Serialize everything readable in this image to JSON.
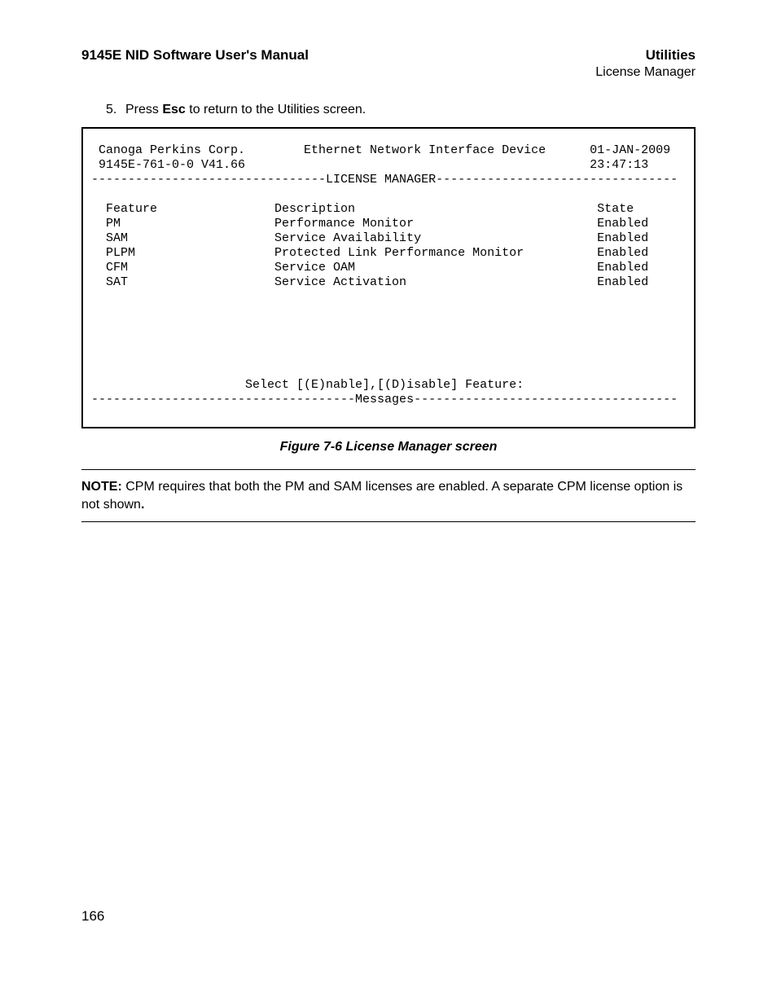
{
  "header": {
    "left": "9145E NID Software User's Manual",
    "right_title": "Utilities",
    "right_sub": "License Manager"
  },
  "instruction": {
    "number": "5.",
    "prefix": "Press ",
    "key": "Esc",
    "suffix": " to return to the Utilities screen."
  },
  "terminal": {
    "company": "Canoga Perkins Corp.",
    "device": "Ethernet Network Interface Device",
    "date": "01-JAN-2009",
    "model": "9145E-761-0-0 V41.66",
    "time": "23:47:13",
    "section_title": "LICENSE MANAGER",
    "col_feature": "Feature",
    "col_description": "Description",
    "col_state": "State",
    "rows": [
      {
        "feature": "PM",
        "description": "Performance Monitor",
        "state": "Enabled"
      },
      {
        "feature": "SAM",
        "description": "Service Availability",
        "state": "Enabled"
      },
      {
        "feature": "PLPM",
        "description": "Protected Link Performance Monitor",
        "state": "Enabled"
      },
      {
        "feature": "CFM",
        "description": "Service OAM",
        "state": "Enabled"
      },
      {
        "feature": "SAT",
        "description": "Service Activation",
        "state": "Enabled"
      }
    ],
    "prompt": "Select [(E)nable],[(D)isable] Feature:",
    "messages_label": "Messages"
  },
  "figure_caption": "Figure 7-6  License Manager screen",
  "note": {
    "label": "NOTE:",
    "text": "  CPM requires that both the PM and SAM licenses are enabled. A separate CPM license option is not shown",
    "period": "."
  },
  "page_number": "166"
}
